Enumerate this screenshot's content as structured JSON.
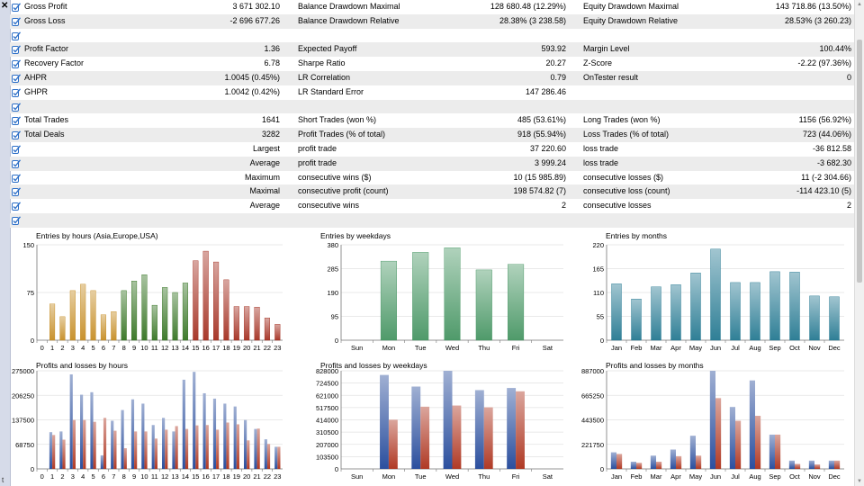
{
  "stats_rows": [
    [
      "Gross Profit",
      "3 671 302.10",
      "Balance Drawdown Maximal",
      "128 680.48 (12.29%)",
      "Equity Drawdown Maximal",
      "143 718.86 (13.50%)"
    ],
    [
      "Gross Loss",
      "-2 696 677.26",
      "Balance Drawdown Relative",
      "28.38% (3 238.58)",
      "Equity Drawdown Relative",
      "28.53% (3 260.23)"
    ],
    [
      "",
      "",
      "",
      "",
      "",
      ""
    ],
    [
      "Profit Factor",
      "1.36",
      "Expected Payoff",
      "593.92",
      "Margin Level",
      "100.44%"
    ],
    [
      "Recovery Factor",
      "6.78",
      "Sharpe Ratio",
      "20.27",
      "Z-Score",
      "-2.22 (97.36%)"
    ],
    [
      "AHPR",
      "1.0045 (0.45%)",
      "LR Correlation",
      "0.79",
      "OnTester result",
      "0"
    ],
    [
      "GHPR",
      "1.0042 (0.42%)",
      "LR Standard Error",
      "147 286.46",
      "",
      ""
    ],
    [
      "",
      "",
      "",
      "",
      "",
      ""
    ],
    [
      "Total Trades",
      "1641",
      "Short Trades (won %)",
      "485 (53.61%)",
      "Long Trades (won %)",
      "1156 (56.92%)"
    ],
    [
      "Total Deals",
      "3282",
      "Profit Trades (% of total)",
      "918 (55.94%)",
      "Loss Trades (% of total)",
      "723 (44.06%)"
    ],
    [
      "",
      "Largest",
      "profit trade",
      "37 220.60",
      "loss trade",
      "-36 812.58"
    ],
    [
      "",
      "Average",
      "profit trade",
      "3 999.24",
      "loss trade",
      "-3 682.30"
    ],
    [
      "",
      "Maximum",
      "consecutive wins ($)",
      "10 (15 985.89)",
      "consecutive losses ($)",
      "11 (-2 304.66)"
    ],
    [
      "",
      "Maximal",
      "consecutive profit (count)",
      "198 574.82 (7)",
      "consecutive loss (count)",
      "-114 423.10 (5)"
    ],
    [
      "",
      "Average",
      "consecutive wins",
      "2",
      "consecutive losses",
      "2"
    ],
    [
      "",
      "",
      "",
      "",
      "",
      ""
    ]
  ],
  "ui": {
    "close_glyph": "✕",
    "strip_text": "t"
  },
  "colors": {
    "hours_profile": [
      "#c8922e",
      "#c8922e",
      "#c8922e",
      "#c8922e",
      "#c8922e",
      "#c8922e",
      "#c8922e",
      "#c8922e",
      "#3e7a2c",
      "#3e7a2c",
      "#3e7a2c",
      "#3e7a2c",
      "#3e7a2c",
      "#3e7a2c",
      "#3e7a2c",
      "#a8392b",
      "#a8392b",
      "#a8392b",
      "#a8392b",
      "#a8392b",
      "#a8392b",
      "#a8392b",
      "#a8392b",
      "#a8392b"
    ],
    "weekday": "#4f9a6a",
    "month": "#2f7f96",
    "profit": "#2b4f9e",
    "loss": "#b03a25"
  },
  "chart_data": [
    {
      "type": "bar",
      "title": "Entries by hours (Asia,Europe,USA)",
      "categories": [
        "0",
        "1",
        "2",
        "3",
        "4",
        "5",
        "6",
        "7",
        "8",
        "9",
        "10",
        "11",
        "12",
        "13",
        "14",
        "15",
        "16",
        "17",
        "18",
        "19",
        "20",
        "21",
        "22",
        "23"
      ],
      "yticks": [
        "0",
        "75",
        "150"
      ],
      "ylim": [
        0,
        150
      ],
      "values": [
        0,
        57,
        37,
        78,
        88,
        78,
        40,
        45,
        78,
        93,
        103,
        55,
        83,
        75,
        90,
        125,
        140,
        123,
        95,
        53,
        53,
        52,
        35,
        25
      ]
    },
    {
      "type": "bar",
      "title": "Entries by weekdays",
      "categories": [
        "Sun",
        "Mon",
        "Tue",
        "Wed",
        "Thu",
        "Fri",
        "Sat"
      ],
      "yticks": [
        "0",
        "95",
        "190",
        "285",
        "380"
      ],
      "ylim": [
        0,
        380
      ],
      "values": [
        0,
        315,
        350,
        368,
        280,
        302,
        0
      ]
    },
    {
      "type": "bar",
      "title": "Entries by months",
      "categories": [
        "Jan",
        "Feb",
        "Mar",
        "Apr",
        "May",
        "Jun",
        "Jul",
        "Aug",
        "Sep",
        "Oct",
        "Nov",
        "Dec"
      ],
      "yticks": [
        "0",
        "55",
        "110",
        "165",
        "220"
      ],
      "ylim": [
        0,
        220
      ],
      "values": [
        130,
        95,
        123,
        128,
        155,
        210,
        133,
        133,
        158,
        157,
        102,
        100
      ]
    },
    {
      "type": "bar",
      "title": "Profits and losses by hours",
      "categories": [
        "0",
        "1",
        "2",
        "3",
        "4",
        "5",
        "6",
        "7",
        "8",
        "9",
        "10",
        "11",
        "12",
        "13",
        "14",
        "15",
        "16",
        "17",
        "18",
        "19",
        "20",
        "21",
        "22",
        "23"
      ],
      "yticks": [
        "0",
        "68750",
        "137500",
        "206250",
        "275000"
      ],
      "ylim": [
        0,
        275000
      ],
      "series": [
        {
          "values": [
            0,
            103000,
            105000,
            265000,
            208000,
            215000,
            38000,
            135000,
            165000,
            195000,
            183000,
            123000,
            143000,
            105000,
            250000,
            272000,
            212000,
            197000,
            183000,
            175000,
            137000,
            112000,
            83000,
            62000
          ]
        },
        {
          "values": [
            0,
            95000,
            82000,
            137000,
            137000,
            132000,
            143000,
            107000,
            58000,
            105000,
            105000,
            85000,
            110000,
            120000,
            112000,
            122000,
            123000,
            110000,
            130000,
            125000,
            80000,
            113000,
            70000,
            62000
          ]
        }
      ]
    },
    {
      "type": "bar",
      "title": "Profits and losses by weekdays",
      "categories": [
        "Sun",
        "Mon",
        "Tue",
        "Wed",
        "Thu",
        "Fri",
        "Sat"
      ],
      "yticks": [
        "0",
        "103500",
        "207000",
        "310500",
        "414000",
        "517500",
        "621000",
        "724500",
        "828000"
      ],
      "ylim": [
        0,
        828000
      ],
      "series": [
        {
          "values": [
            0,
            793000,
            695000,
            828000,
            665000,
            683000,
            0
          ]
        },
        {
          "values": [
            0,
            415000,
            525000,
            535000,
            520000,
            655000,
            0
          ]
        }
      ]
    },
    {
      "type": "bar",
      "title": "Profits and losses by months",
      "categories": [
        "Jan",
        "Feb",
        "Mar",
        "Apr",
        "May",
        "Jun",
        "Jul",
        "Aug",
        "Sep",
        "Oct",
        "Nov",
        "Dec"
      ],
      "yticks": [
        "0",
        "221750",
        "443500",
        "665250",
        "887000"
      ],
      "ylim": [
        0,
        887000
      ],
      "series": [
        {
          "values": [
            150000,
            65000,
            120000,
            175000,
            300000,
            887000,
            560000,
            800000,
            310000,
            75000,
            75000,
            75000
          ]
        },
        {
          "values": [
            135000,
            55000,
            65000,
            115000,
            120000,
            640000,
            435000,
            480000,
            310000,
            45000,
            40000,
            75000
          ]
        }
      ]
    }
  ]
}
